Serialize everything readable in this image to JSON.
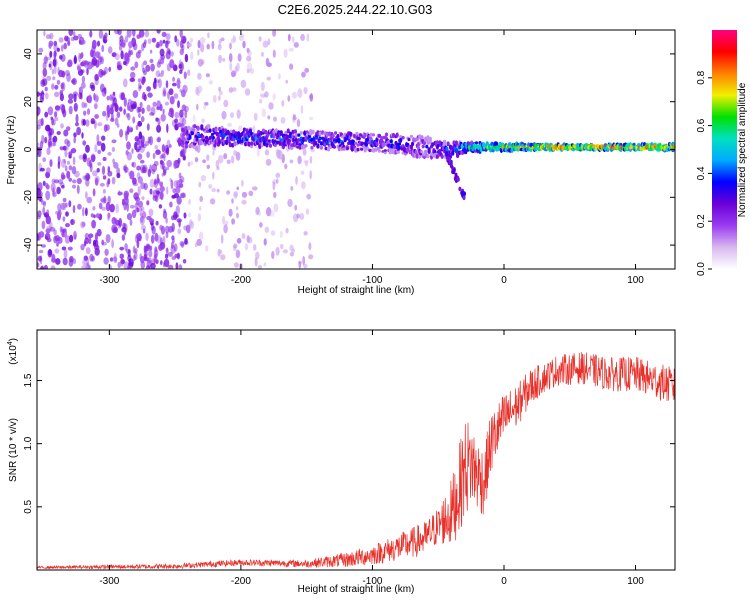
{
  "title": "C2E6.2025.244.22.10.G03",
  "chart_data": [
    {
      "type": "heatmap",
      "xlabel": "Height of straight line (km)",
      "ylabel": "Frequency (Hz)",
      "xlim": [
        -355,
        130
      ],
      "ylim": [
        -50,
        50
      ],
      "xticks": [
        "-300",
        "-200",
        "-100",
        "0",
        "100"
      ],
      "xtick_values": [
        -300,
        -200,
        -100,
        0,
        100
      ],
      "yticks": [
        "-40",
        "-20",
        "0",
        "20",
        "40"
      ],
      "ytick_values": [
        -40,
        -20,
        0,
        20,
        40
      ],
      "colorbar": {
        "label": "Normalized spectral amplitude",
        "range": [
          0,
          1
        ],
        "ticks": [
          "0.0",
          "0.2",
          "0.4",
          "0.6",
          "0.8"
        ],
        "tick_values": [
          0.0,
          0.2,
          0.4,
          0.6,
          0.8
        ],
        "colormap": [
          "#ffffff",
          "#d8b8f0",
          "#9a3cf0",
          "#6a00d8",
          "#0000ff",
          "#00aaff",
          "#00e0c0",
          "#00e000",
          "#f0f000",
          "#ff8000",
          "#ff0000",
          "#ff0080"
        ]
      },
      "ridge": {
        "x": [
          -245,
          -230,
          -200,
          -150,
          -100,
          -80,
          -60,
          -45,
          -35,
          -30,
          0,
          50,
          100,
          130
        ],
        "center_freq": [
          5,
          6,
          5,
          4,
          3,
          2,
          1,
          0,
          0,
          1,
          1,
          1,
          1,
          1
        ],
        "width": [
          6,
          6,
          5,
          5,
          5,
          6,
          6,
          5,
          4,
          3,
          2,
          1.5,
          1.5,
          2
        ],
        "amplitude": [
          0.25,
          0.3,
          0.35,
          0.35,
          0.3,
          0.3,
          0.25,
          0.3,
          0.4,
          0.55,
          0.75,
          0.85,
          0.85,
          0.8
        ]
      },
      "noise_regions": [
        {
          "x": [
            -355,
            -240
          ],
          "freq": [
            -50,
            50
          ],
          "amplitude": 0.1,
          "density": "high"
        },
        {
          "x": [
            -240,
            -145
          ],
          "freq": [
            -50,
            50
          ],
          "amplitude": 0.05,
          "density": "low"
        }
      ]
    },
    {
      "type": "line",
      "xlabel": "Height of straight line (km)",
      "ylabel": "SNR (10 * v/v)",
      "multiplier_label": "(x10",
      "multiplier_exp": "4",
      "multiplier_close": ")",
      "xlim": [
        -355,
        130
      ],
      "ylim": [
        0,
        1.9
      ],
      "xticks": [
        "-300",
        "-200",
        "-100",
        "0",
        "100"
      ],
      "xtick_values": [
        -300,
        -200,
        -100,
        0,
        100
      ],
      "yticks": [
        "0.5",
        "1.0",
        "1.5"
      ],
      "ytick_values": [
        0.5,
        1.0,
        1.5
      ],
      "series": [
        {
          "color": "#e8302a",
          "trend_x": [
            -355,
            -250,
            -200,
            -150,
            -120,
            -100,
            -80,
            -60,
            -50,
            -40,
            -35,
            -30,
            -25,
            -20,
            -15,
            -10,
            -5,
            0,
            10,
            20,
            30,
            40,
            60,
            80,
            100,
            115,
            130
          ],
          "trend_y": [
            0.02,
            0.03,
            0.06,
            0.05,
            0.08,
            0.12,
            0.18,
            0.25,
            0.35,
            0.45,
            0.6,
            0.8,
            0.85,
            0.75,
            0.7,
            1.0,
            1.1,
            1.2,
            1.3,
            1.45,
            1.52,
            1.58,
            1.6,
            1.55,
            1.55,
            1.5,
            1.45
          ],
          "noise_x": [
            -355,
            -150,
            -100,
            -50,
            -30,
            -20,
            0,
            30,
            130
          ],
          "noise_amp": [
            0.01,
            0.03,
            0.08,
            0.15,
            0.4,
            0.3,
            0.2,
            0.12,
            0.15
          ]
        }
      ]
    }
  ]
}
